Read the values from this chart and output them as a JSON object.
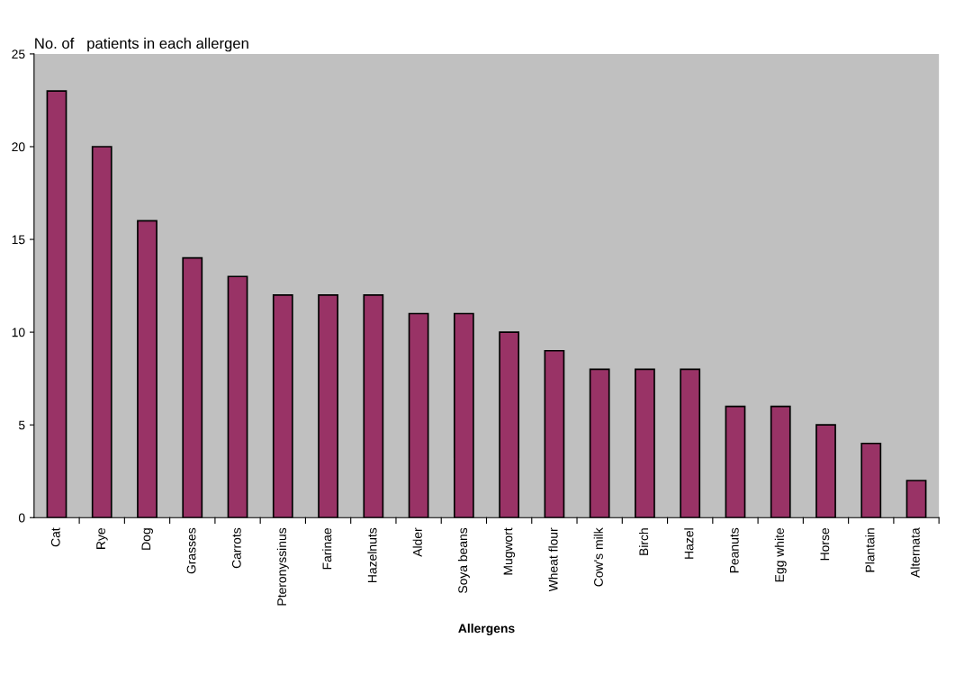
{
  "chart_data": {
    "type": "bar",
    "ylabel": "No. of   patients in each allergen",
    "xlabel": "Allergens",
    "categories": [
      "Cat",
      "Rye",
      "Dog",
      "Grasses",
      "Carrots",
      "Pteronyssinus",
      "Farinae",
      "Hazelnuts",
      "Alder",
      "Soya beans",
      "Mugwort",
      "Wheat flour",
      "Cow's milk",
      "Birch",
      "Hazel",
      "Peanuts",
      "Egg white",
      "Horse",
      "Plantain",
      "Alternata"
    ],
    "values": [
      23,
      20,
      16,
      14,
      13,
      12,
      12,
      12,
      11,
      11,
      10,
      9,
      8,
      8,
      8,
      6,
      6,
      5,
      4,
      2
    ],
    "color": "#993366",
    "ylim": [
      0,
      25
    ],
    "yticks": [
      0,
      5,
      10,
      15,
      20,
      25
    ],
    "grid": false,
    "legend": false
  }
}
